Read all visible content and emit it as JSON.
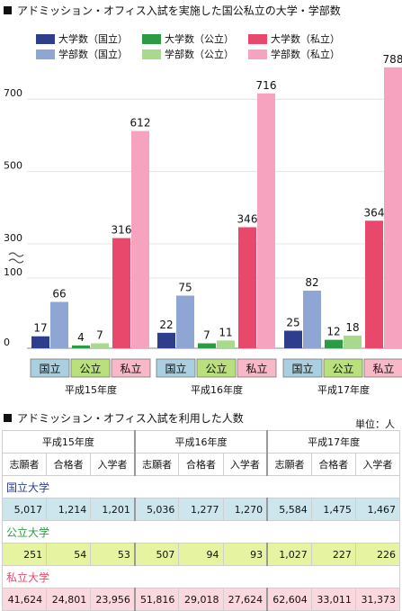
{
  "chart_title": "アドミッション・オフィス入試を実施した国公私立の大学・学部数",
  "legend": [
    {
      "label": "大学数（国立）",
      "color": "#2e3e8c"
    },
    {
      "label": "大学数（公立）",
      "color": "#2d9a45"
    },
    {
      "label": "大学数（私立）",
      "color": "#e8486b"
    },
    {
      "label": "学部数（国立）",
      "color": "#8fa6d4"
    },
    {
      "label": "学部数（公立）",
      "color": "#a9d98c"
    },
    {
      "label": "学部数（私立）",
      "color": "#f6a3c0"
    }
  ],
  "chart_data": {
    "type": "bar",
    "title": "アドミッション・オフィス入試を実施した国公私立の大学・学部数",
    "categories": [
      "平成15年度",
      "平成16年度",
      "平成17年度"
    ],
    "yticks": [
      "0",
      "100",
      "300",
      "500",
      "700"
    ],
    "axis_break": "100-300",
    "groups": [
      "国立",
      "公立",
      "私立"
    ],
    "series": [
      {
        "name": "大学数（国立）",
        "values": [
          17,
          22,
          25
        ]
      },
      {
        "name": "学部数（国立）",
        "values": [
          66,
          75,
          82
        ]
      },
      {
        "name": "大学数（公立）",
        "values": [
          4,
          7,
          12
        ]
      },
      {
        "name": "学部数（公立）",
        "values": [
          7,
          11,
          18
        ]
      },
      {
        "name": "大学数（私立）",
        "values": [
          316,
          346,
          364
        ]
      },
      {
        "name": "学部数（私立）",
        "values": [
          612,
          716,
          788
        ]
      }
    ],
    "group_label_colors": [
      "#a9cfe0",
      "#b9e07a",
      "#f8b8c8"
    ]
  },
  "table_title": "アドミッション・オフィス入試を利用した人数",
  "unit_label": "単位：人",
  "table": {
    "years": [
      "平成15年度",
      "平成16年度",
      "平成17年度"
    ],
    "cols": [
      "志願者",
      "合格者",
      "入学者"
    ],
    "sections": [
      {
        "name": "国立大学",
        "name_color": "#2e3e8c",
        "row_bg": "#cde6ee",
        "values": [
          "5,017",
          "1,214",
          "1,201",
          "5,036",
          "1,277",
          "1,270",
          "5,584",
          "1,475",
          "1,467"
        ]
      },
      {
        "name": "公立大学",
        "name_color": "#2d9a45",
        "row_bg": "#e6f3a0",
        "values": [
          "251",
          "54",
          "53",
          "507",
          "94",
          "93",
          "1,027",
          "227",
          "226"
        ]
      },
      {
        "name": "私立大学",
        "name_color": "#e8486b",
        "row_bg": "#fbd7de",
        "values": [
          "41,624",
          "24,801",
          "23,956",
          "51,816",
          "29,018",
          "27,624",
          "62,604",
          "33,011",
          "31,373"
        ]
      }
    ]
  }
}
